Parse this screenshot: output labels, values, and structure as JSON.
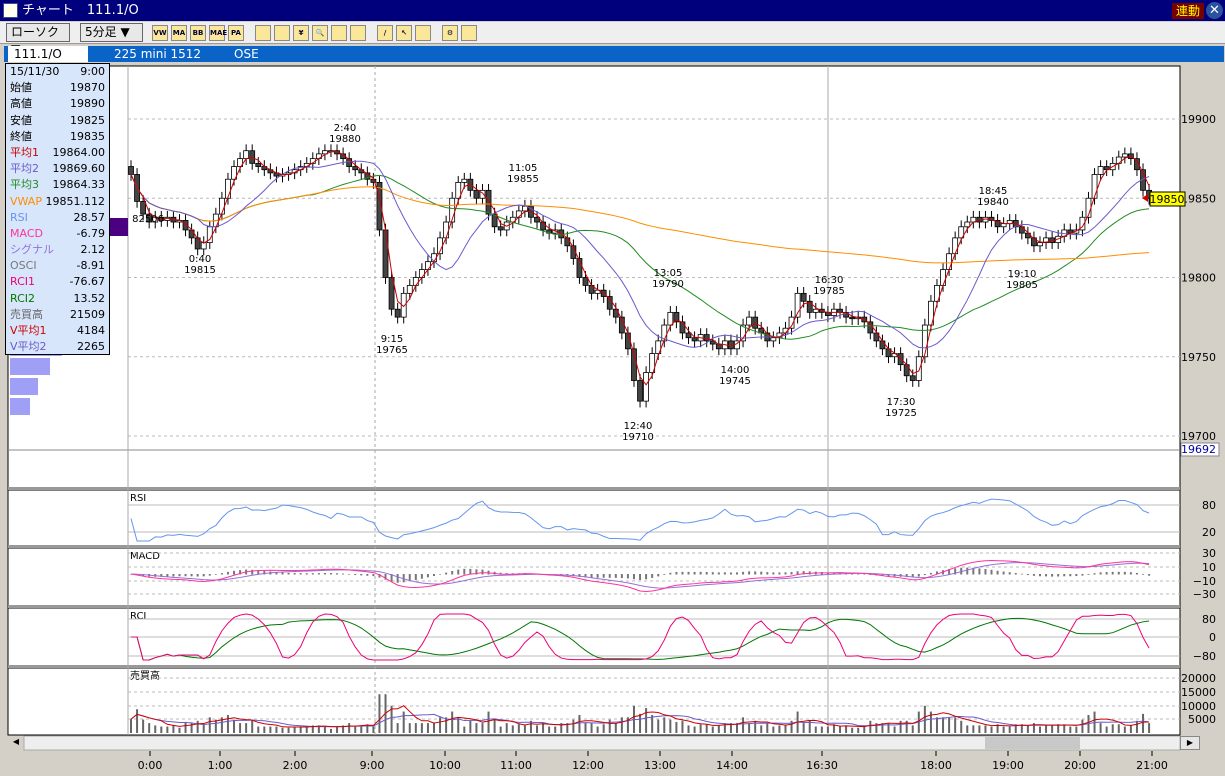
{
  "window": {
    "title": "チャート　111.1/O",
    "link_label": "連動",
    "close_label": "✕"
  },
  "toolbar": {
    "chart_type": "ローソク ▼",
    "interval": "5分足 ▼",
    "tools": [
      {
        "icon": "vwap-icon",
        "label": "VW"
      },
      {
        "icon": "ma-icon",
        "label": "MA"
      },
      {
        "icon": "bb-icon",
        "label": "BB"
      },
      {
        "icon": "mae-icon",
        "label": "MAE"
      },
      {
        "icon": "pa-icon",
        "label": "PA"
      },
      {
        "icon": "line-chart-icon",
        "label": ""
      },
      {
        "icon": "grid-icon",
        "label": ""
      },
      {
        "icon": "yen-icon",
        "label": "¥"
      },
      {
        "icon": "zoom-icon",
        "label": "🔍"
      },
      {
        "icon": "abacus-icon",
        "label": ""
      },
      {
        "icon": "split-icon",
        "label": ""
      },
      {
        "icon": "pen-icon",
        "label": "/"
      },
      {
        "icon": "cursor-icon",
        "label": "↖"
      },
      {
        "icon": "eraser-icon",
        "label": ""
      },
      {
        "icon": "settings-icon",
        "label": "⚙"
      },
      {
        "icon": "ruler-icon",
        "label": ""
      }
    ]
  },
  "infobar": {
    "symbol": "111.1/O",
    "name": "225 mini 1512",
    "exchange": "OSE"
  },
  "info_panel": {
    "date": "15/11/30",
    "time": "9:00",
    "rows": [
      {
        "label": "始値",
        "value": "19870",
        "color": "#000000"
      },
      {
        "label": "高値",
        "value": "19890",
        "color": "#000000"
      },
      {
        "label": "安値",
        "value": "19825",
        "color": "#000000"
      },
      {
        "label": "終値",
        "value": "19835",
        "color": "#000000"
      },
      {
        "label": "平均1",
        "value": "19864.00",
        "color": "#cc0000"
      },
      {
        "label": "平均2",
        "value": "19869.60",
        "color": "#6a5acd"
      },
      {
        "label": "平均3",
        "value": "19864.33",
        "color": "#228b22"
      },
      {
        "label": "VWAP",
        "value": "19851.112",
        "color": "#ff8c00"
      },
      {
        "label": "RSI",
        "value": "28.57",
        "color": "#6495ed"
      },
      {
        "label": "MACD",
        "value": "-6.79",
        "color": "#ff3399"
      },
      {
        "label": "シグナル",
        "value": "2.12",
        "color": "#9370db"
      },
      {
        "label": "OSCI",
        "value": "-8.91",
        "color": "#777777"
      },
      {
        "label": "RCI1",
        "value": "-76.67",
        "color": "#ee0077"
      },
      {
        "label": "RCI2",
        "value": "13.52",
        "color": "#007700"
      },
      {
        "label": "売買高",
        "value": "21509",
        "color": "#666666"
      },
      {
        "label": "V平均1",
        "value": "4184",
        "color": "#cc0000"
      },
      {
        "label": "V平均2",
        "value": "2265",
        "color": "#6a5acd"
      }
    ]
  },
  "chart_data": {
    "type": "candlestick",
    "ylim": [
      19692,
      19910
    ],
    "price_ticks": [
      "19900",
      "19850",
      "19800",
      "19750",
      "19700"
    ],
    "current_price": "19850",
    "low_marker": "19692",
    "time_ticks": [
      "0:00",
      "1:00",
      "2:00",
      "9:00",
      "10:00",
      "11:00",
      "12:00",
      "13:00",
      "14:00",
      "16:30",
      "18:00",
      "19:00",
      "20:00",
      "21:00"
    ],
    "closes": [
      19865,
      19848,
      19840,
      19835,
      19838,
      19836,
      19838,
      19835,
      19836,
      19830,
      19825,
      19818,
      19822,
      19832,
      19840,
      19850,
      19862,
      19870,
      19875,
      19880,
      19872,
      19870,
      19868,
      19866,
      19864,
      19865,
      19866,
      19868,
      19870,
      19872,
      19875,
      19878,
      19880,
      19880,
      19878,
      19875,
      19870,
      19868,
      19866,
      19862,
      19860,
      19830,
      19800,
      19780,
      19775,
      19790,
      19795,
      19800,
      19805,
      19810,
      19815,
      19825,
      19835,
      19850,
      19860,
      19862,
      19855,
      19850,
      19855,
      19840,
      19832,
      19830,
      19835,
      19838,
      19842,
      19845,
      19838,
      19835,
      19830,
      19828,
      19830,
      19825,
      19820,
      19812,
      19800,
      19795,
      19790,
      19792,
      19788,
      19780,
      19775,
      19765,
      19755,
      19735,
      19722,
      19740,
      19752,
      19760,
      19770,
      19778,
      19772,
      19765,
      19762,
      19760,
      19764,
      19760,
      19758,
      19755,
      19760,
      19755,
      19760,
      19770,
      19775,
      19768,
      19765,
      19760,
      19762,
      19765,
      19768,
      19775,
      19790,
      19785,
      19778,
      19780,
      19778,
      19776,
      19780,
      19778,
      19775,
      19774,
      19775,
      19772,
      19765,
      19760,
      19755,
      19750,
      19752,
      19745,
      19738,
      19735,
      19750,
      19770,
      19785,
      19795,
      19805,
      19815,
      19825,
      19832,
      19835,
      19838,
      19835,
      19838,
      19836,
      19832,
      19834,
      19836,
      19832,
      19828,
      19825,
      19820,
      19822,
      19825,
      19822,
      19826,
      19830,
      19828,
      19830,
      19838,
      19850,
      19865,
      19870,
      19868,
      19872,
      19876,
      19878,
      19875,
      19868,
      19855,
      19850
    ],
    "annotations": [
      {
        "a": "82506",
        "b": ""
      },
      {
        "a": "0:40",
        "b": "19815"
      },
      {
        "a": "2:40",
        "b": "19880"
      },
      {
        "a": "9:15",
        "b": "19765"
      },
      {
        "a": "11:05",
        "b": "19855"
      },
      {
        "a": "12:40",
        "b": "19710"
      },
      {
        "a": "13:05",
        "b": "19790"
      },
      {
        "a": "14:00",
        "b": "19745"
      },
      {
        "a": "16:30",
        "b": "19785"
      },
      {
        "a": "17:30",
        "b": "19725"
      },
      {
        "a": "18:45",
        "b": "19840"
      },
      {
        "a": "19:10",
        "b": "19805"
      }
    ],
    "panels": [
      {
        "title": "RSI",
        "ticks": [
          "80",
          "20"
        ]
      },
      {
        "title": "MACD",
        "ticks": [
          "30",
          "10",
          "−10",
          "−30"
        ]
      },
      {
        "title": "RCI",
        "ticks": [
          "80",
          "0",
          "−80"
        ]
      },
      {
        "title": "売買高",
        "ticks": [
          "20000",
          "15000",
          "10000",
          "5000"
        ]
      }
    ],
    "colors": {
      "ma1": "#cc0000",
      "ma2": "#6a5acd",
      "ma3": "#228b22",
      "vwap": "#ff8c00",
      "rsi": "#6495ed",
      "macd": "#ff3399",
      "signal": "#9370db",
      "rci1": "#ee0077",
      "rci2": "#007700",
      "volume": "#666666"
    }
  }
}
